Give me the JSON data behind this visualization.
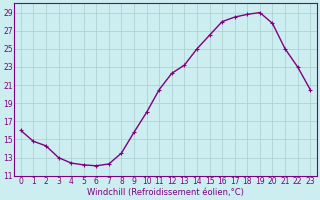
{
  "x": [
    0,
    1,
    2,
    3,
    4,
    5,
    6,
    7,
    8,
    9,
    10,
    11,
    12,
    13,
    14,
    15,
    16,
    17,
    18,
    19,
    20,
    21,
    22,
    23
  ],
  "y": [
    16.0,
    14.8,
    14.3,
    13.0,
    12.4,
    12.2,
    12.1,
    12.3,
    13.5,
    15.8,
    18.0,
    20.5,
    22.3,
    23.2,
    25.0,
    26.5,
    28.0,
    28.5,
    28.8,
    29.0,
    27.8,
    25.0,
    23.0,
    20.5
  ],
  "line_color": "#800080",
  "marker": "+",
  "marker_size": 3,
  "background_color": "#cceef0",
  "grid_color": "#aacccc",
  "xlabel": "Windchill (Refroidissement éolien,°C)",
  "ylabel": "",
  "title": "",
  "xlim_min": -0.5,
  "xlim_max": 23.5,
  "ylim_min": 11,
  "ylim_max": 30,
  "yticks": [
    11,
    13,
    15,
    17,
    19,
    21,
    23,
    25,
    27,
    29
  ],
  "xticks": [
    0,
    1,
    2,
    3,
    4,
    5,
    6,
    7,
    8,
    9,
    10,
    11,
    12,
    13,
    14,
    15,
    16,
    17,
    18,
    19,
    20,
    21,
    22,
    23
  ],
  "xlabel_fontsize": 6.0,
  "tick_fontsize": 5.5,
  "line_width": 1.0,
  "fig_width": 3.2,
  "fig_height": 2.0,
  "dpi": 100
}
